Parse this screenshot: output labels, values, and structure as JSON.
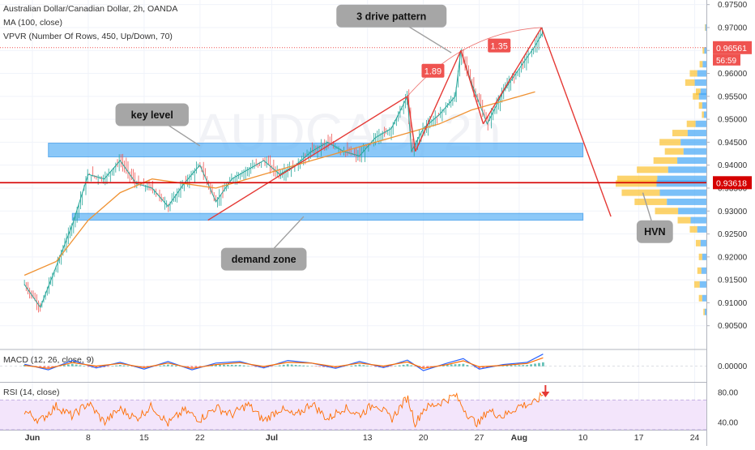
{
  "header": {
    "symbol_line": "Australian Dollar/Canadian Dollar, 2h, OANDA",
    "ma_indicator": "MA (100, close)",
    "vpvr_indicator": "VPVR (Number Of Rows, 450, Up/Down, 70)"
  },
  "watermark": "AUDCAD, 2h",
  "chart_data": [
    {
      "type": "line",
      "pane": "price",
      "ylim": [
        0.9,
        0.976
      ],
      "y_ticks": [
        "0.97500",
        "0.97000",
        "0.96500",
        "0.96000",
        "0.95500",
        "0.95000",
        "0.94500",
        "0.94000",
        "0.93500",
        "0.93000",
        "0.92500",
        "0.92000",
        "0.91500",
        "0.91000",
        "0.90500"
      ],
      "y_tick_values": [
        0.975,
        0.97,
        0.965,
        0.96,
        0.955,
        0.95,
        0.945,
        0.94,
        0.935,
        0.93,
        0.925,
        0.92,
        0.915,
        0.91,
        0.905
      ],
      "x_ticks": [
        "Jun",
        "8",
        "15",
        "22",
        "Jul",
        "13",
        "20",
        "27",
        "Aug",
        "10",
        "17",
        "24"
      ],
      "x_tick_days": [
        1,
        8,
        15,
        22,
        31,
        43,
        50,
        57,
        62,
        70,
        77,
        84
      ],
      "price_path": [
        [
          0,
          0.914
        ],
        [
          2,
          0.909
        ],
        [
          4,
          0.918
        ],
        [
          6,
          0.927
        ],
        [
          8,
          0.938
        ],
        [
          10,
          0.937
        ],
        [
          12,
          0.941
        ],
        [
          14,
          0.936
        ],
        [
          16,
          0.935
        ],
        [
          18,
          0.931
        ],
        [
          20,
          0.936
        ],
        [
          22,
          0.94
        ],
        [
          24,
          0.932
        ],
        [
          26,
          0.937
        ],
        [
          28,
          0.939
        ],
        [
          30,
          0.941
        ],
        [
          32,
          0.938
        ],
        [
          34,
          0.94
        ],
        [
          36,
          0.943
        ],
        [
          38,
          0.945
        ],
        [
          40,
          0.943
        ],
        [
          42,
          0.942
        ],
        [
          44,
          0.946
        ],
        [
          46,
          0.948
        ],
        [
          48,
          0.955
        ],
        [
          48.5,
          0.943
        ],
        [
          50,
          0.948
        ],
        [
          52,
          0.951
        ],
        [
          54,
          0.955
        ],
        [
          54.7,
          0.965
        ],
        [
          56,
          0.958
        ],
        [
          58,
          0.949
        ],
        [
          60,
          0.956
        ],
        [
          62,
          0.961
        ],
        [
          64,
          0.966
        ],
        [
          65,
          0.969
        ]
      ],
      "ma_path": [
        [
          0,
          0.916
        ],
        [
          4,
          0.919
        ],
        [
          8,
          0.928
        ],
        [
          12,
          0.934
        ],
        [
          16,
          0.937
        ],
        [
          20,
          0.936
        ],
        [
          24,
          0.935
        ],
        [
          28,
          0.937
        ],
        [
          32,
          0.939
        ],
        [
          36,
          0.941
        ],
        [
          40,
          0.943
        ],
        [
          44,
          0.945
        ],
        [
          48,
          0.947
        ],
        [
          52,
          0.949
        ],
        [
          56,
          0.952
        ],
        [
          60,
          0.954
        ],
        [
          64,
          0.956
        ]
      ],
      "current_price": "0.96561",
      "current_price_value": 0.96561,
      "countdown": "56:59",
      "hvn_price": "0.93618",
      "hvn_price_value": 0.93618,
      "zones": [
        {
          "name": "key-level",
          "from": 0.9418,
          "to": 0.9448,
          "day_from": 3,
          "day_to": 70
        },
        {
          "name": "demand-zone",
          "from": 0.928,
          "to": 0.9295,
          "day_from": 6,
          "day_to": 70
        }
      ],
      "pattern_lines": [
        {
          "from": [
            23,
            0.928
          ],
          "to": [
            48,
            0.955
          ]
        },
        {
          "from": [
            48,
            0.955
          ],
          "to": [
            49,
            0.943
          ]
        },
        {
          "from": [
            49,
            0.943
          ],
          "to": [
            54.7,
            0.965
          ]
        },
        {
          "from": [
            54.7,
            0.965
          ],
          "to": [
            57.5,
            0.949
          ]
        },
        {
          "from": [
            57.5,
            0.949
          ],
          "to": [
            64.8,
            0.97
          ]
        },
        {
          "from": [
            64.8,
            0.97
          ],
          "to": [
            73.5,
            0.9288
          ]
        }
      ],
      "fib_labels": [
        {
          "text": "1.89",
          "at": [
            51.2,
            0.9605
          ]
        },
        {
          "text": "1.35",
          "at": [
            59.5,
            0.966
          ]
        }
      ],
      "annotations": [
        {
          "text": "3 drive pattern",
          "at": [
            46,
            0.9725
          ],
          "pointer": [
            53.5,
            0.9645
          ]
        },
        {
          "text": "key level",
          "at": [
            16,
            0.951
          ],
          "pointer": [
            22,
            0.9442
          ]
        },
        {
          "text": "demand zone",
          "at": [
            30,
            0.9195
          ],
          "pointer": [
            35,
            0.9288
          ]
        },
        {
          "text": "HVN",
          "at": [
            79,
            0.9255
          ],
          "pointer": [
            77.5,
            0.934
          ]
        }
      ],
      "volume_profile": [
        [
          0.97,
          2
        ],
        [
          0.965,
          5
        ],
        [
          0.962,
          9
        ],
        [
          0.96,
          22
        ],
        [
          0.958,
          28
        ],
        [
          0.956,
          14
        ],
        [
          0.955,
          18
        ],
        [
          0.953,
          10
        ],
        [
          0.951,
          6
        ],
        [
          0.949,
          26
        ],
        [
          0.947,
          45
        ],
        [
          0.945,
          62
        ],
        [
          0.943,
          55
        ],
        [
          0.941,
          70
        ],
        [
          0.939,
          92
        ],
        [
          0.937,
          118
        ],
        [
          0.936,
          120
        ],
        [
          0.934,
          112
        ],
        [
          0.932,
          95
        ],
        [
          0.93,
          68
        ],
        [
          0.928,
          38
        ],
        [
          0.926,
          22
        ],
        [
          0.923,
          14
        ],
        [
          0.92,
          10
        ],
        [
          0.917,
          12
        ],
        [
          0.914,
          16
        ],
        [
          0.911,
          10
        ],
        [
          0.908,
          4
        ]
      ]
    },
    {
      "type": "line",
      "pane": "macd",
      "title": "MACD (12, 26, close, 9)",
      "y_ticks": [
        "0.00000"
      ],
      "ylim": [
        -0.004,
        0.004
      ],
      "macd_path": [
        [
          0,
          0.0005
        ],
        [
          3,
          -0.001
        ],
        [
          6,
          0.0015
        ],
        [
          9,
          -0.0005
        ],
        [
          12,
          0.001
        ],
        [
          15,
          -0.0008
        ],
        [
          18,
          0.0012
        ],
        [
          21,
          -0.001
        ],
        [
          24,
          0.0008
        ],
        [
          27,
          0.0012
        ],
        [
          30,
          -0.0005
        ],
        [
          33,
          0.0015
        ],
        [
          36,
          0.0008
        ],
        [
          39,
          -0.0006
        ],
        [
          42,
          0.0012
        ],
        [
          45,
          -0.0004
        ],
        [
          48,
          0.0016
        ],
        [
          50,
          -0.0012
        ],
        [
          53,
          0.0008
        ],
        [
          55,
          0.002
        ],
        [
          57,
          -0.0008
        ],
        [
          60,
          0.0004
        ],
        [
          63,
          0.001
        ],
        [
          65,
          0.0032
        ]
      ],
      "signal_path": [
        [
          0,
          0.0002
        ],
        [
          3,
          -0.0006
        ],
        [
          6,
          0.0009
        ],
        [
          9,
          0
        ],
        [
          12,
          0.0007
        ],
        [
          15,
          -0.0004
        ],
        [
          18,
          0.0008
        ],
        [
          21,
          -0.0006
        ],
        [
          24,
          0.0004
        ],
        [
          27,
          0.0009
        ],
        [
          30,
          -0.0001
        ],
        [
          33,
          0.001
        ],
        [
          36,
          0.0008
        ],
        [
          39,
          -0.0002
        ],
        [
          42,
          0.0008
        ],
        [
          45,
          0
        ],
        [
          48,
          0.0011
        ],
        [
          50,
          -0.0006
        ],
        [
          53,
          0.0004
        ],
        [
          55,
          0.0014
        ],
        [
          57,
          -0.0002
        ],
        [
          60,
          0.0002
        ],
        [
          63,
          0.0007
        ],
        [
          65,
          0.0022
        ]
      ]
    },
    {
      "type": "line",
      "pane": "rsi",
      "title": "RSI (14, close)",
      "y_ticks": [
        "80.00",
        "40.00"
      ],
      "y_tick_values": [
        80,
        40
      ],
      "ylim": [
        30,
        92
      ],
      "band": [
        30,
        70
      ],
      "rsi_path": [
        [
          0,
          55
        ],
        [
          2,
          42
        ],
        [
          4,
          62
        ],
        [
          6,
          48
        ],
        [
          8,
          66
        ],
        [
          10,
          40
        ],
        [
          12,
          58
        ],
        [
          14,
          45
        ],
        [
          16,
          62
        ],
        [
          18,
          38
        ],
        [
          20,
          56
        ],
        [
          22,
          44
        ],
        [
          24,
          60
        ],
        [
          26,
          50
        ],
        [
          28,
          64
        ],
        [
          30,
          42
        ],
        [
          32,
          58
        ],
        [
          34,
          48
        ],
        [
          36,
          66
        ],
        [
          38,
          44
        ],
        [
          40,
          60
        ],
        [
          42,
          50
        ],
        [
          44,
          66
        ],
        [
          46,
          44
        ],
        [
          48,
          74
        ],
        [
          49,
          38
        ],
        [
          50,
          58
        ],
        [
          52,
          66
        ],
        [
          54,
          76
        ],
        [
          56,
          44
        ],
        [
          57,
          38
        ],
        [
          58,
          56
        ],
        [
          60,
          48
        ],
        [
          62,
          62
        ],
        [
          64,
          66
        ],
        [
          65,
          78
        ]
      ],
      "signal_arrow_day": 65.3
    }
  ],
  "colors": {
    "price": "#26a69a",
    "price_down": "#ef5350",
    "ma": "#f09232",
    "zone": "#64b5f6",
    "pattern": "#e53935",
    "hvn_line": "#d50000",
    "current_tag": "#ef5350",
    "vp_up": "#fbc02d",
    "vp_down": "#42a5f5",
    "macd": "#2962ff",
    "signal": "#ff6d00",
    "rsi": "#ff6d00",
    "rsi_band": "#f3e5fb",
    "callout": "#a6a6a6"
  }
}
